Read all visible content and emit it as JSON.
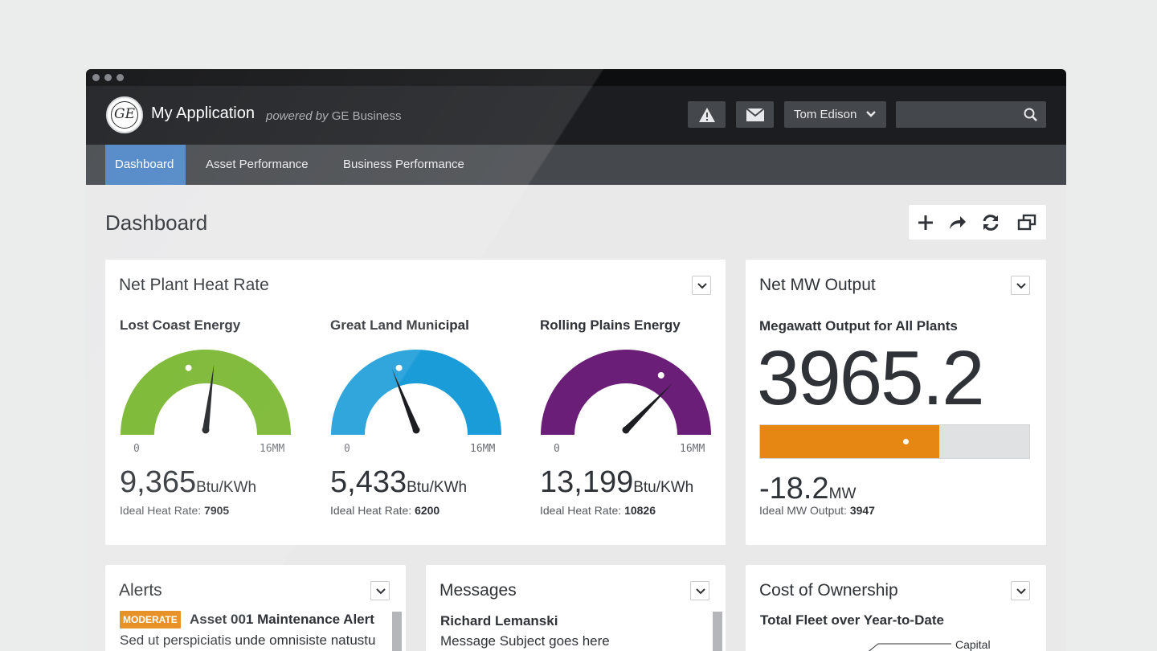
{
  "app": {
    "title": "My Application",
    "powered_prefix": "powered by",
    "powered_brand": "GE Business",
    "logo_text": "GE"
  },
  "header": {
    "user_name": "Tom Edison",
    "search_placeholder": ""
  },
  "nav": {
    "tabs": [
      {
        "label": "Dashboard",
        "active": true
      },
      {
        "label": "Asset Performance",
        "active": false
      },
      {
        "label": "Business Performance",
        "active": false
      }
    ]
  },
  "page": {
    "title": "Dashboard"
  },
  "heat_rate": {
    "title": "Net Plant Heat Rate",
    "gauges": [
      {
        "name": "Lost Coast Energy",
        "min": "0",
        "max": "16MM",
        "value": "9,365",
        "unit": "Btu/KWh",
        "ideal_label": "Ideal Heat Rate:",
        "ideal": "7905",
        "color": "#76b52b",
        "needle_fraction": 0.54,
        "marker_fraction": 0.42
      },
      {
        "name": "Great Land Municipal",
        "min": "0",
        "max": "16MM",
        "value": "5,433",
        "unit": "Btu/KWh",
        "ideal_label": "Ideal Heat Rate:",
        "ideal": "6200",
        "color": "#1a9cd8",
        "needle_fraction": 0.38,
        "marker_fraction": 0.42
      },
      {
        "name": "Rolling Plains Energy",
        "min": "0",
        "max": "16MM",
        "value": "13,199",
        "unit": "Btu/KWh",
        "ideal_label": "Ideal Heat Rate:",
        "ideal": "10826",
        "color": "#6b1e78",
        "needle_fraction": 0.75,
        "marker_fraction": 0.67
      }
    ]
  },
  "mw_output": {
    "title": "Net MW Output",
    "subtitle": "Megawatt Output for All Plants",
    "value": "3965.2",
    "bar_fraction": 0.665,
    "marker_fraction": 0.54,
    "bar_color": "#e58712",
    "delta": "-18.2",
    "delta_unit": "MW",
    "ideal_label": "Ideal MW Output:",
    "ideal": "3947"
  },
  "alerts": {
    "title": "Alerts",
    "badge": "MODERATE",
    "item_title": "Asset 001 Maintenance Alert",
    "item_body": "Sed ut perspiciatis unde omnisiste natustu"
  },
  "messages": {
    "title": "Messages",
    "from": "Richard Lemanski",
    "subject": "Message Subject goes here"
  },
  "cost": {
    "title": "Cost of Ownership",
    "subtitle": "Total Fleet over Year-to-Date",
    "legend_label": "Capital"
  },
  "icons": {
    "alert": "warning-icon",
    "mail": "mail-icon",
    "search": "search-icon",
    "add": "plus-icon",
    "share": "share-icon",
    "refresh": "refresh-icon",
    "popout": "popout-icon"
  }
}
